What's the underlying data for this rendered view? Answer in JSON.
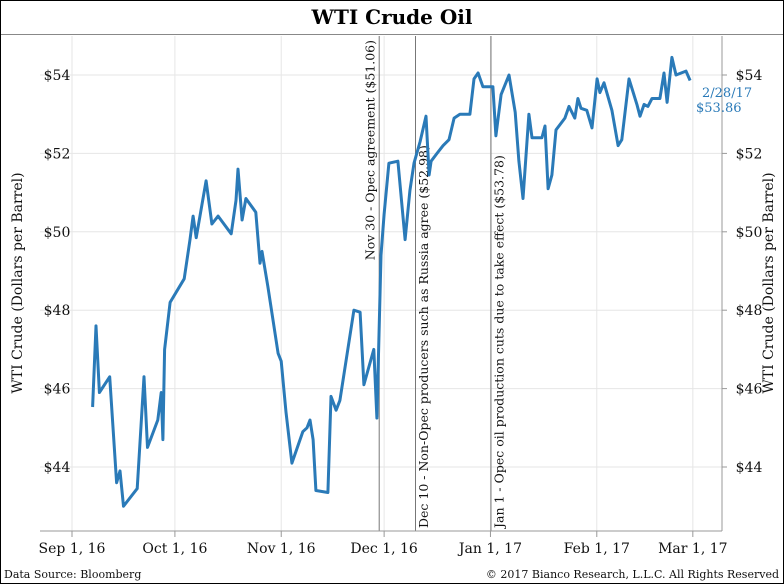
{
  "chart_data": {
    "type": "line",
    "title": "WTI Crude Oil",
    "ylabel_left": "WTI Crude (Dollars per Barrel)",
    "ylabel_right": "WTI Crude (Dollars per Barrel)",
    "x_unit": "days since Sep 1, 2016",
    "xlim": [
      -10,
      190
    ],
    "ylim": [
      42.6,
      55.1
    ],
    "yticks": [
      44,
      46,
      48,
      50,
      52,
      54
    ],
    "ytick_labels": [
      "$44",
      "$46",
      "$48",
      "$50",
      "$52",
      "$54"
    ],
    "xticks": [
      0,
      30,
      61,
      91,
      122,
      153,
      181
    ],
    "xtick_labels": [
      "Sep 1, 16",
      "Oct 1, 16",
      "Nov 1, 16",
      "Dec 1, 16",
      "Jan 1, 17",
      "Feb 1, 17",
      "Mar 1, 17"
    ],
    "grid": true,
    "series_color": "#2a7ab8",
    "series": [
      {
        "name": "WTI Crude",
        "points": [
          [
            6,
            45.53
          ],
          [
            7,
            47.6
          ],
          [
            8,
            45.9
          ],
          [
            11,
            46.3
          ],
          [
            13,
            43.6
          ],
          [
            14,
            43.9
          ],
          [
            15,
            43.0
          ],
          [
            19,
            43.45
          ],
          [
            21,
            46.3
          ],
          [
            22,
            44.5
          ],
          [
            25,
            45.2
          ],
          [
            26,
            45.9
          ],
          [
            26.5,
            44.7
          ],
          [
            27,
            47.0
          ],
          [
            28.6,
            48.2
          ],
          [
            32.7,
            48.8
          ],
          [
            34.4,
            49.8
          ],
          [
            35.3,
            50.4
          ],
          [
            36.2,
            49.85
          ],
          [
            39.1,
            51.3
          ],
          [
            40.8,
            50.2
          ],
          [
            42.6,
            50.4
          ],
          [
            46.4,
            49.95
          ],
          [
            47.8,
            50.8
          ],
          [
            48.4,
            51.6
          ],
          [
            49.6,
            50.3
          ],
          [
            50.7,
            50.85
          ],
          [
            53.6,
            50.5
          ],
          [
            54.8,
            49.2
          ],
          [
            55.4,
            49.5
          ],
          [
            57.1,
            48.6
          ],
          [
            60.1,
            46.9
          ],
          [
            61,
            46.7
          ],
          [
            62.4,
            45.4
          ],
          [
            64.1,
            44.1
          ],
          [
            67.3,
            44.9
          ],
          [
            68.5,
            45.0
          ],
          [
            69.4,
            45.2
          ],
          [
            70.3,
            44.7
          ],
          [
            71.1,
            43.4
          ],
          [
            74.6,
            43.35
          ],
          [
            75.5,
            45.8
          ],
          [
            77,
            45.45
          ],
          [
            78.1,
            45.7
          ],
          [
            82.2,
            48.0
          ],
          [
            84,
            47.95
          ],
          [
            85.1,
            46.1
          ],
          [
            88,
            47.0
          ],
          [
            88.9,
            45.25
          ],
          [
            90.1,
            49.4
          ],
          [
            91,
            50.45
          ],
          [
            92.4,
            51.75
          ],
          [
            95,
            51.8
          ],
          [
            97.1,
            49.8
          ],
          [
            98.5,
            51.05
          ],
          [
            99.7,
            51.75
          ],
          [
            101.5,
            52.3
          ],
          [
            103.2,
            52.95
          ],
          [
            104.1,
            51.45
          ],
          [
            104.7,
            51.8
          ],
          [
            106.4,
            52.0
          ],
          [
            108.2,
            52.2
          ],
          [
            109.9,
            52.35
          ],
          [
            111.4,
            52.9
          ],
          [
            113.1,
            53.0
          ],
          [
            116,
            53.0
          ],
          [
            117.2,
            53.9
          ],
          [
            118.4,
            54.05
          ],
          [
            119.8,
            53.7
          ],
          [
            122.7,
            53.7
          ],
          [
            123.6,
            52.45
          ],
          [
            125.1,
            53.5
          ],
          [
            127.4,
            54.0
          ],
          [
            129.2,
            53.05
          ],
          [
            130.3,
            51.8
          ],
          [
            131.5,
            50.85
          ],
          [
            133.2,
            53.0
          ],
          [
            134.1,
            52.4
          ],
          [
            137,
            52.4
          ],
          [
            137.9,
            52.7
          ],
          [
            138.8,
            51.1
          ],
          [
            139.9,
            51.45
          ],
          [
            141.1,
            52.6
          ],
          [
            143.7,
            52.9
          ],
          [
            144.9,
            53.2
          ],
          [
            146.6,
            52.9
          ],
          [
            147.5,
            53.4
          ],
          [
            148.4,
            53.15
          ],
          [
            150.1,
            53.1
          ],
          [
            151.6,
            52.65
          ],
          [
            153.1,
            53.9
          ],
          [
            153.9,
            53.55
          ],
          [
            155.1,
            53.8
          ],
          [
            157.4,
            53.1
          ],
          [
            159.2,
            52.2
          ],
          [
            160.3,
            52.35
          ],
          [
            162.4,
            53.9
          ],
          [
            164.7,
            53.25
          ],
          [
            165.6,
            52.95
          ],
          [
            166.8,
            53.25
          ],
          [
            167.9,
            53.2
          ],
          [
            169.1,
            53.4
          ],
          [
            171.4,
            53.4
          ],
          [
            172.6,
            54.05
          ],
          [
            173.5,
            53.3
          ],
          [
            174.9,
            54.45
          ],
          [
            176.1,
            54.0
          ],
          [
            179,
            54.1
          ],
          [
            180.2,
            53.86
          ]
        ]
      }
    ],
    "annotations": [
      {
        "day": 90,
        "text": "Nov 30 - Opec agreement ($51.06)"
      },
      {
        "day": 100,
        "text": "Dec 10 - Non-Opec producers such as Russia agree ($52.98)"
      },
      {
        "day": 122,
        "text": "Jan 1 - Opec oil production cuts due to take effect ($53.78)"
      }
    ],
    "end_label": {
      "date": "2/28/17",
      "value": "$53.86"
    }
  },
  "footer": {
    "source": "Data Source: Bloomberg",
    "copyright": "© 2017 Bianco Research, L.L.C. All Rights Reserved"
  }
}
